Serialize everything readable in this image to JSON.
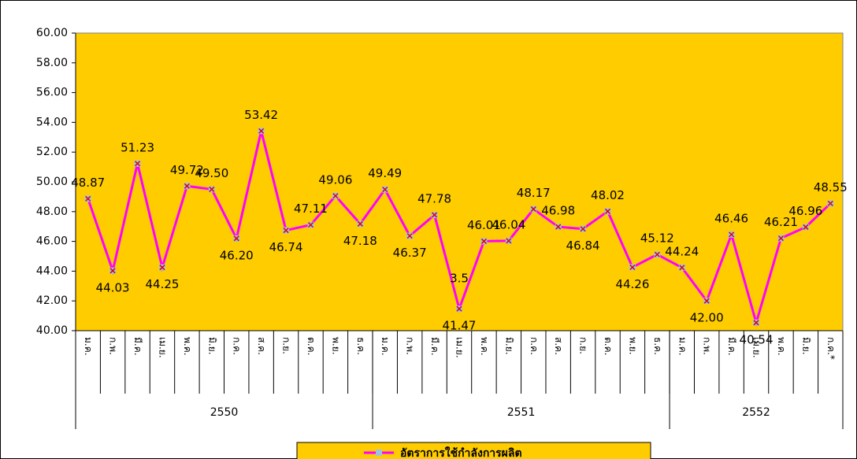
{
  "chart_data": {
    "type": "line",
    "groups": [
      {
        "name": "2550",
        "categories": [
          "ม.ค.",
          "ก.พ.",
          "มี.ค.",
          "เม.ย.",
          "พ.ค.",
          "มิ.ย.",
          "ก.ค.",
          "ส.ค.",
          "ก.ย.",
          "ต.ค.",
          "พ.ย.",
          "ธ.ค."
        ]
      },
      {
        "name": "2551",
        "categories": [
          "ม.ค.",
          "ก.พ.",
          "มี.ค.",
          "เม.ย.",
          "พ.ค.",
          "มิ.ย.",
          "ก.ค.",
          "ส.ค.",
          "ก.ย.",
          "ต.ค.",
          "พ.ย.",
          "ธ.ค."
        ]
      },
      {
        "name": "2552",
        "categories": [
          "ม.ค.",
          "ก.พ.",
          "มี.ค.",
          "เม.ย.",
          "พ.ค.",
          "มิ.ย.",
          "ก.ค.*"
        ]
      }
    ],
    "series": [
      {
        "name": "อัตราการใช้กำลังการผลิต",
        "color": "#ff00ff",
        "values": [
          48.87,
          44.03,
          51.23,
          44.25,
          49.72,
          49.5,
          46.2,
          53.42,
          46.74,
          47.11,
          49.06,
          47.18,
          49.49,
          46.37,
          47.78,
          41.47,
          46.01,
          46.04,
          48.17,
          46.98,
          46.84,
          48.02,
          44.26,
          45.12,
          44.24,
          42.0,
          46.46,
          40.54,
          46.21,
          46.96,
          48.55
        ],
        "value_labels": [
          "48.87",
          "44.03",
          "51.23",
          "44.25",
          "49.72",
          "49.50",
          "46.20",
          "53.42",
          "46.74",
          "47.11",
          "49.06",
          "47.18",
          "49.49",
          "46.37",
          "47.78",
          "41.47",
          "46.01",
          "46.04",
          "48.17",
          "46.98",
          "46.84",
          "48.02",
          "44.26",
          "45.12",
          "44.24",
          "42.00",
          "46.46",
          "40.54",
          "46.21",
          "46.96",
          "48.55"
        ]
      }
    ],
    "annotations": [
      {
        "text": "3.5",
        "x": 15,
        "y": 43.5
      }
    ],
    "ylim": [
      40,
      60
    ],
    "yticks": [
      {
        "value": 40,
        "label": "40.00"
      },
      {
        "value": 42,
        "label": "42.00"
      },
      {
        "value": 44,
        "label": "44.00"
      },
      {
        "value": 46,
        "label": "46.00"
      },
      {
        "value": 48,
        "label": "48.00"
      },
      {
        "value": 50,
        "label": "50.00"
      },
      {
        "value": 52,
        "label": "52.00"
      },
      {
        "value": 54,
        "label": "54.00"
      },
      {
        "value": 56,
        "label": "56.00"
      },
      {
        "value": 58,
        "label": "58.00"
      },
      {
        "value": 60,
        "label": "60.00"
      }
    ],
    "plot_color": "#ffcc00",
    "legend": "bottom"
  }
}
